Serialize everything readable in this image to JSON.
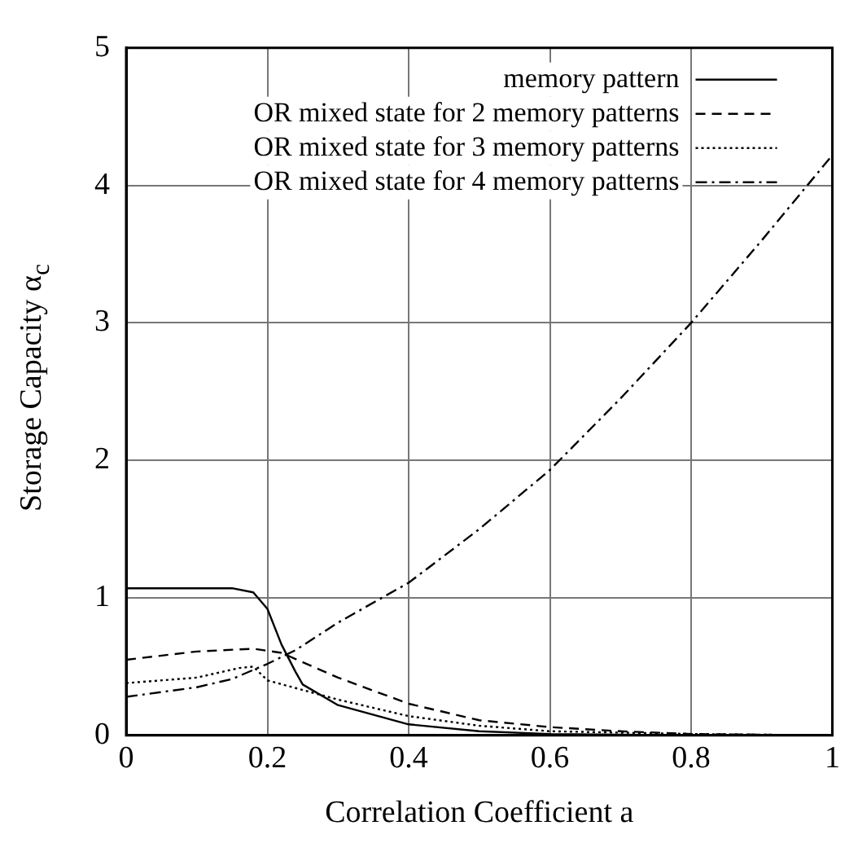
{
  "chart_data": {
    "type": "line",
    "xlabel": "Correlation Coefficient a",
    "ylabel": "Storage Capacity α$_{c}$",
    "xlim": [
      0,
      1
    ],
    "ylim": [
      0,
      5
    ],
    "xticks": [
      0,
      0.2,
      0.4,
      0.6,
      0.8,
      1
    ],
    "yticks": [
      0,
      1,
      2,
      3,
      4,
      5
    ],
    "grid": true,
    "legend": "top right",
    "marker": "none",
    "series": [
      {
        "name": "memory pattern",
        "color": "#000000",
        "line_style": "solid",
        "x": [
          0,
          0.1,
          0.15,
          0.18,
          0.2,
          0.22,
          0.24,
          0.25,
          0.3,
          0.4,
          0.5,
          0.6,
          0.8,
          1
        ],
        "values": [
          1.07,
          1.07,
          1.07,
          1.04,
          0.92,
          0.66,
          0.46,
          0.37,
          0.22,
          0.08,
          0.03,
          0.01,
          0,
          0
        ]
      },
      {
        "name": "OR mixed state for 2 memory patterns",
        "color": "#000000",
        "line_style": "dashed",
        "x": [
          0,
          0.1,
          0.18,
          0.22,
          0.3,
          0.4,
          0.5,
          0.6,
          0.7,
          0.8,
          1
        ],
        "values": [
          0.55,
          0.61,
          0.63,
          0.6,
          0.42,
          0.23,
          0.11,
          0.06,
          0.03,
          0.01,
          0
        ]
      },
      {
        "name": "OR mixed state for 3 memory patterns",
        "color": "#000000",
        "line_style": "dotted",
        "x": [
          0,
          0.1,
          0.16,
          0.18,
          0.2,
          0.25,
          0.3,
          0.4,
          0.5,
          0.6,
          0.8,
          1
        ],
        "values": [
          0.38,
          0.42,
          0.49,
          0.5,
          0.4,
          0.33,
          0.26,
          0.14,
          0.07,
          0.03,
          0.01,
          0
        ]
      },
      {
        "name": "OR mixed state for 4 memory patterns",
        "color": "#000000",
        "line_style": "dashdot",
        "x": [
          0,
          0.1,
          0.15,
          0.2,
          0.24,
          0.3,
          0.4,
          0.5,
          0.6,
          0.7,
          0.8,
          0.9,
          1
        ],
        "values": [
          0.28,
          0.35,
          0.41,
          0.52,
          0.62,
          0.82,
          1.11,
          1.5,
          1.93,
          2.45,
          3.0,
          3.6,
          4.22
        ]
      }
    ]
  }
}
